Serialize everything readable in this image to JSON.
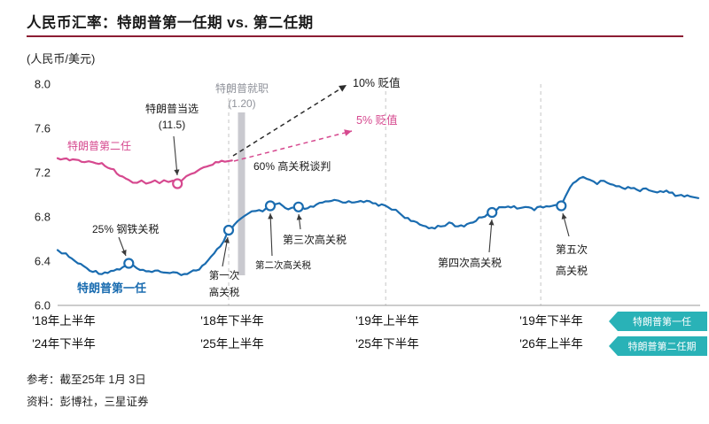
{
  "header": {
    "title": "人民币汇率：特朗普第一任期 vs. 第二任期"
  },
  "legend": {
    "first_term": "特朗普第一任",
    "second_term": "特朗普第二任期"
  },
  "annotations": {
    "second_term_label": "特朗普第二任",
    "first_term_label": "特朗普第一任",
    "elected_line1": "特朗普当选",
    "elected_line2": "(11.5)",
    "inauguration_line1": "特朗普就职",
    "inauguration_line2": "(1.20)",
    "depreciation_10": "10% 贬值",
    "depreciation_5": "5% 贬值",
    "tariff_talk_60": "60% 高关税谈判",
    "steel_tariff_25": "25% 钢铁关税",
    "tariff1_line1": "第一次",
    "tariff1_line2": "高关税",
    "tariff2": "第二次高关税",
    "tariff3": "第三次高关税",
    "tariff4": "第四次高关税",
    "tariff5_line1": "第五次",
    "tariff5_line2": "高关税"
  },
  "footer": {
    "reference": "参考：截至25年 1月 3日",
    "source": "资料：彭博社，三星证券"
  },
  "chart_data": {
    "type": "line",
    "title": "人民币汇率：特朗普第一任期 vs. 第二任期",
    "ylabel": "(人民币/美元)",
    "ylim": [
      6.0,
      8.0
    ],
    "y_ticks": [
      8.0,
      7.6,
      7.2,
      6.8,
      6.4,
      6.0
    ],
    "x_axis_rows": [
      [
        "'18年上半年",
        "'18年下半年",
        "'19年上半年",
        "'19年下半年"
      ],
      [
        "'24年下半年",
        "'25年上半年",
        "'25年下半年",
        "'26年上半年"
      ]
    ],
    "x_tick_t": [
      0.0097,
      0.2725,
      0.5145,
      0.7704
    ],
    "gridlines_t": [
      0.267,
      0.512,
      0.754
    ],
    "grid": true,
    "legend_position": "bottom-right",
    "series": [
      {
        "id": "first-term",
        "name": "特朗普第一任",
        "color": "#1a6cb0",
        "points": [
          [
            0.0,
            6.5
          ],
          [
            0.013,
            6.46
          ],
          [
            0.027,
            6.4
          ],
          [
            0.041,
            6.35
          ],
          [
            0.055,
            6.31
          ],
          [
            0.069,
            6.29
          ],
          [
            0.083,
            6.31
          ],
          [
            0.097,
            6.33
          ],
          [
            0.111,
            6.38
          ],
          [
            0.124,
            6.33
          ],
          [
            0.138,
            6.3
          ],
          [
            0.152,
            6.32
          ],
          [
            0.166,
            6.29
          ],
          [
            0.18,
            6.31
          ],
          [
            0.193,
            6.28
          ],
          [
            0.207,
            6.3
          ],
          [
            0.221,
            6.33
          ],
          [
            0.235,
            6.4
          ],
          [
            0.249,
            6.5
          ],
          [
            0.259,
            6.58
          ],
          [
            0.267,
            6.68
          ],
          [
            0.276,
            6.73
          ],
          [
            0.286,
            6.78
          ],
          [
            0.297,
            6.82
          ],
          [
            0.309,
            6.86
          ],
          [
            0.32,
            6.84
          ],
          [
            0.332,
            6.9
          ],
          [
            0.346,
            6.92
          ],
          [
            0.36,
            6.86
          ],
          [
            0.376,
            6.89
          ],
          [
            0.39,
            6.87
          ],
          [
            0.404,
            6.91
          ],
          [
            0.418,
            6.93
          ],
          [
            0.432,
            6.95
          ],
          [
            0.445,
            6.94
          ],
          [
            0.459,
            6.93
          ],
          [
            0.473,
            6.95
          ],
          [
            0.487,
            6.93
          ],
          [
            0.501,
            6.91
          ],
          [
            0.515,
            6.89
          ],
          [
            0.528,
            6.86
          ],
          [
            0.542,
            6.8
          ],
          [
            0.556,
            6.75
          ],
          [
            0.57,
            6.72
          ],
          [
            0.584,
            6.7
          ],
          [
            0.598,
            6.72
          ],
          [
            0.611,
            6.74
          ],
          [
            0.625,
            6.71
          ],
          [
            0.639,
            6.73
          ],
          [
            0.653,
            6.77
          ],
          [
            0.667,
            6.81
          ],
          [
            0.678,
            6.84
          ],
          [
            0.689,
            6.88
          ],
          [
            0.703,
            6.9
          ],
          [
            0.717,
            6.88
          ],
          [
            0.73,
            6.9
          ],
          [
            0.744,
            6.87
          ],
          [
            0.758,
            6.89
          ],
          [
            0.772,
            6.91
          ],
          [
            0.786,
            6.9
          ],
          [
            0.793,
            7.0
          ],
          [
            0.8,
            7.07
          ],
          [
            0.809,
            7.12
          ],
          [
            0.82,
            7.16
          ],
          [
            0.831,
            7.14
          ],
          [
            0.842,
            7.1
          ],
          [
            0.853,
            7.13
          ],
          [
            0.867,
            7.09
          ],
          [
            0.881,
            7.06
          ],
          [
            0.895,
            7.07
          ],
          [
            0.909,
            7.04
          ],
          [
            0.923,
            7.05
          ],
          [
            0.936,
            7.02
          ],
          [
            0.95,
            7.03
          ],
          [
            0.964,
            7.0
          ],
          [
            0.978,
            6.99
          ],
          [
            0.992,
            6.98
          ],
          [
            1.0,
            6.97
          ]
        ]
      },
      {
        "id": "second-term",
        "name": "特朗普第二任期",
        "color": "#d6498f",
        "points": [
          [
            0.0,
            7.33
          ],
          [
            0.014,
            7.32
          ],
          [
            0.028,
            7.31
          ],
          [
            0.042,
            7.3
          ],
          [
            0.055,
            7.3
          ],
          [
            0.069,
            7.28
          ],
          [
            0.083,
            7.24
          ],
          [
            0.097,
            7.18
          ],
          [
            0.111,
            7.13
          ],
          [
            0.124,
            7.1
          ],
          [
            0.131,
            7.12
          ],
          [
            0.138,
            7.1
          ],
          [
            0.145,
            7.12
          ],
          [
            0.152,
            7.13
          ],
          [
            0.159,
            7.11
          ],
          [
            0.166,
            7.13
          ],
          [
            0.173,
            7.12
          ],
          [
            0.18,
            7.13
          ],
          [
            0.187,
            7.1
          ],
          [
            0.194,
            7.13
          ],
          [
            0.201,
            7.16
          ],
          [
            0.214,
            7.2
          ],
          [
            0.228,
            7.24
          ],
          [
            0.242,
            7.28
          ],
          [
            0.256,
            7.31
          ],
          [
            0.266,
            7.3
          ],
          [
            0.272,
            7.31
          ]
        ]
      }
    ],
    "markers": [
      {
        "series": 1,
        "t": 0.187,
        "value": 7.1,
        "label": "特朗普当选 (11.5)"
      },
      {
        "series": 0,
        "t": 0.111,
        "value": 6.38,
        "label": "25% 钢铁关税"
      },
      {
        "series": 0,
        "t": 0.267,
        "value": 6.68,
        "label": "第一次高关税"
      },
      {
        "series": 0,
        "t": 0.332,
        "value": 6.9,
        "label": "第二次高关税"
      },
      {
        "series": 0,
        "t": 0.376,
        "value": 6.89,
        "label": "第三次高关税"
      },
      {
        "series": 0,
        "t": 0.678,
        "value": 6.84,
        "label": "第四次高关税"
      },
      {
        "series": 0,
        "t": 0.786,
        "value": 6.9,
        "label": "第五次高关税"
      }
    ],
    "event_bar": {
      "t": 0.287,
      "label": "特朗普就职 (1.20)"
    },
    "colors": {
      "title_rule": "#8c1d33",
      "blue": "#1a6cb0",
      "pink": "#d6498f",
      "teal": "#29b2b7",
      "bar": "#c9c9cf",
      "grid": "#c6c6c6",
      "axis": "#9a9a9a",
      "gray_text": "#90939b"
    }
  }
}
